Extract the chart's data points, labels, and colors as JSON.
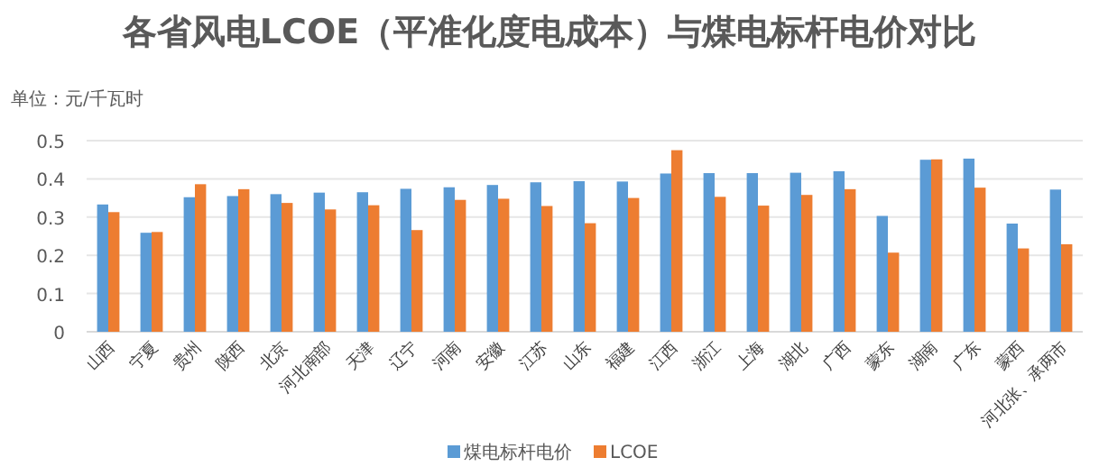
{
  "chart_data": {
    "type": "bar",
    "title": "各省风电LCOE（平准化度电成本）与煤电标杆电价对比",
    "subtitle": "单位：元/千瓦时",
    "categories": [
      "山西",
      "宁夏",
      "贵州",
      "陕西",
      "北京",
      "河北南部",
      "天津",
      "辽宁",
      "河南",
      "安徽",
      "江苏",
      "山东",
      "福建",
      "江西",
      "浙江",
      "上海",
      "湖北",
      "广西",
      "蒙东",
      "湖南",
      "广东",
      "蒙西",
      "河北张、承两市"
    ],
    "series": [
      {
        "name": "煤电标杆电价",
        "color": "#5b9bd5",
        "values": [
          0.333,
          0.259,
          0.352,
          0.355,
          0.36,
          0.364,
          0.365,
          0.374,
          0.378,
          0.384,
          0.391,
          0.394,
          0.393,
          0.414,
          0.415,
          0.415,
          0.416,
          0.42,
          0.303,
          0.45,
          0.453,
          0.283,
          0.372
        ]
      },
      {
        "name": "LCOE",
        "color": "#ed7d31",
        "values": [
          0.313,
          0.261,
          0.386,
          0.373,
          0.337,
          0.32,
          0.331,
          0.266,
          0.345,
          0.348,
          0.329,
          0.284,
          0.35,
          0.475,
          0.353,
          0.33,
          0.358,
          0.373,
          0.207,
          0.451,
          0.377,
          0.218,
          0.229
        ]
      }
    ],
    "ylim": [
      0,
      0.5
    ],
    "yticks": [
      0,
      0.1,
      0.2,
      0.3,
      0.4,
      0.5
    ],
    "grid": "y",
    "legend": "bottom"
  }
}
